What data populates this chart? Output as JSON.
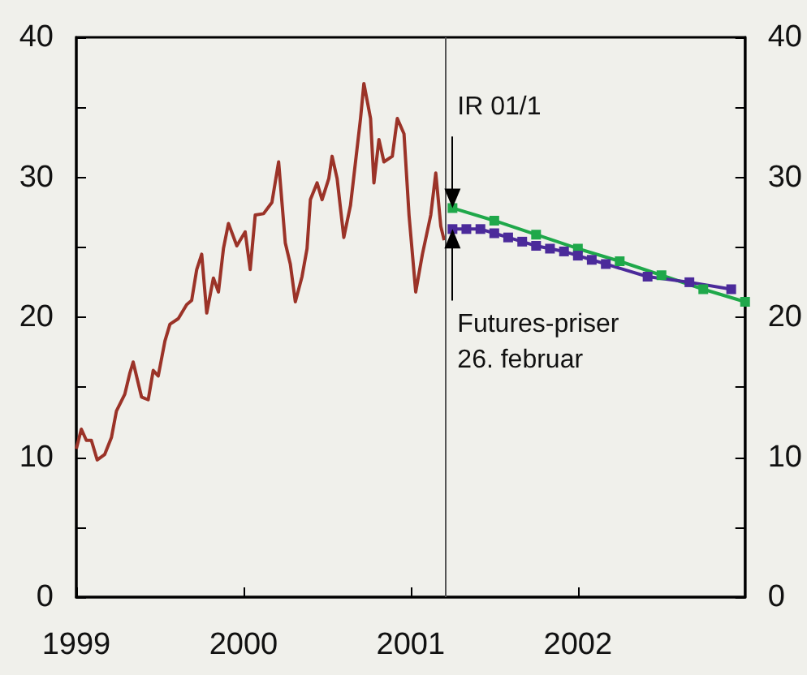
{
  "chart_data": {
    "type": "line",
    "xlim": [
      1999,
      2003
    ],
    "xticks": [
      1999,
      2000,
      2001,
      2002
    ],
    "ylim": [
      0,
      40
    ],
    "yticks": [
      0,
      {
        "value": 5,
        "label": null
      },
      10,
      {
        "value": 15,
        "label": null
      },
      20,
      {
        "value": 25,
        "label": null
      },
      30,
      {
        "value": 35,
        "label": null
      },
      40
    ],
    "y2lim": [
      0,
      40
    ],
    "y2ticks": [
      0,
      {
        "value": 5,
        "label": null
      },
      10,
      {
        "value": 15,
        "label": null
      },
      20,
      {
        "value": 25,
        "label": null
      },
      30,
      {
        "value": 35,
        "label": null
      },
      40
    ],
    "series": [
      {
        "color": "#9b3328",
        "marker": "none",
        "x": [
          1999.0,
          1999.03,
          1999.06,
          1999.09,
          1999.125,
          1999.17,
          1999.21,
          1999.24,
          1999.29,
          1999.32,
          1999.34,
          1999.39,
          1999.43,
          1999.46,
          1999.49,
          1999.53,
          1999.56,
          1999.61,
          1999.66,
          1999.69,
          1999.72,
          1999.75,
          1999.78,
          1999.82,
          1999.85,
          1999.88,
          1999.91,
          1999.96,
          2000.01,
          2000.04,
          2000.07,
          2000.12,
          2000.17,
          2000.21,
          2000.25,
          2000.28,
          2000.31,
          2000.35,
          2000.38,
          2000.4,
          2000.44,
          2000.47,
          2000.51,
          2000.53,
          2000.56,
          2000.6,
          2000.64,
          2000.67,
          2000.7,
          2000.72,
          2000.76,
          2000.78,
          2000.81,
          2000.84,
          2000.89,
          2000.92,
          2000.96,
          2000.99,
          2001.03,
          2001.07,
          2001.12,
          2001.15,
          2001.18,
          2001.2
        ],
        "values": [
          10.6,
          12.0,
          11.2,
          11.2,
          9.8,
          10.2,
          11.4,
          13.3,
          14.5,
          16.0,
          16.8,
          14.3,
          14.1,
          16.2,
          15.8,
          18.3,
          19.5,
          19.9,
          20.9,
          21.2,
          23.4,
          24.5,
          20.3,
          22.8,
          21.8,
          24.9,
          26.7,
          25.1,
          26.1,
          23.4,
          27.3,
          27.4,
          28.2,
          31.1,
          25.3,
          23.8,
          21.1,
          22.9,
          24.9,
          28.4,
          29.6,
          28.4,
          29.9,
          31.5,
          29.9,
          25.7,
          28.0,
          31.1,
          34.2,
          36.7,
          34.2,
          29.6,
          32.7,
          31.1,
          31.5,
          34.2,
          33.1,
          27.3,
          21.8,
          24.5,
          27.3,
          30.3,
          26.5,
          25.5
        ]
      },
      {
        "color": "#1fa84a",
        "marker": "square",
        "x": [
          2001.25,
          2001.5,
          2001.75,
          2002.0,
          2002.25,
          2002.5,
          2002.75,
          2003.0
        ],
        "values": [
          27.8,
          26.9,
          25.9,
          24.9,
          24.0,
          23.0,
          22.0,
          21.1
        ]
      },
      {
        "color": "#4b2a9a",
        "marker": "square",
        "x": [
          2001.25,
          2001.333,
          2001.417,
          2001.5,
          2001.583,
          2001.667,
          2001.75,
          2001.833,
          2001.917,
          2002.0,
          2002.083,
          2002.167,
          2002.417,
          2002.667,
          2002.917
        ],
        "values": [
          26.3,
          26.3,
          26.3,
          26.0,
          25.7,
          25.4,
          25.1,
          24.9,
          24.7,
          24.4,
          24.1,
          23.8,
          22.9,
          22.5,
          22.0
        ]
      }
    ],
    "ref_lines": [
      {
        "axis": "x",
        "value": 2001.21,
        "color": "#555555"
      }
    ],
    "annotations": [
      {
        "text": "IR 01/1",
        "x": 2001.25,
        "y": 27.8
      },
      {
        "text": "Futures-priser\n26. februar",
        "x": 2001.25,
        "y": 26.3
      }
    ]
  }
}
